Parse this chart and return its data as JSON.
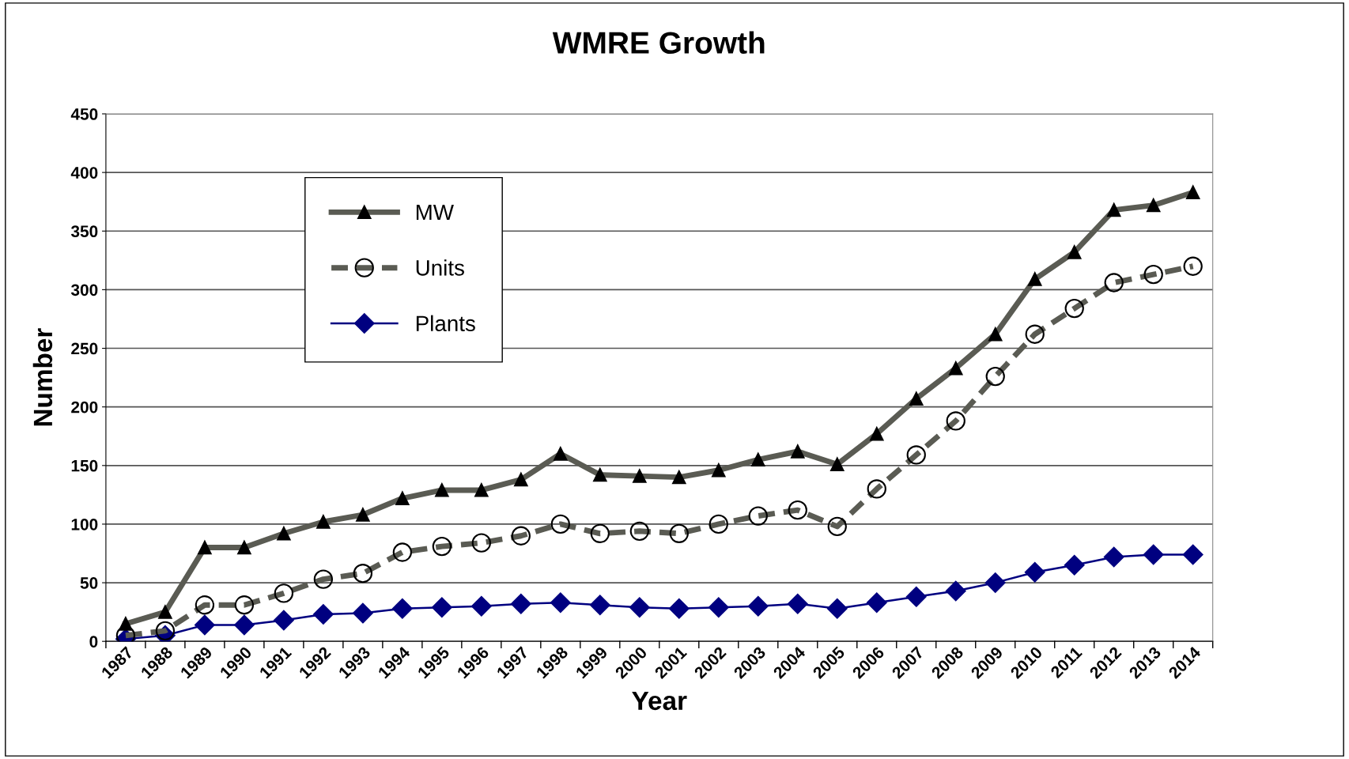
{
  "chart_data": {
    "type": "line",
    "title": "WMRE Growth",
    "xlabel": "Year",
    "ylabel": "Number",
    "categories": [
      "1987",
      "1988",
      "1989",
      "1990",
      "1991",
      "1992",
      "1993",
      "1994",
      "1995",
      "1996",
      "1997",
      "1998",
      "1999",
      "2000",
      "2001",
      "2002",
      "2003",
      "2004",
      "2005",
      "2006",
      "2007",
      "2008",
      "2009",
      "2010",
      "2011",
      "2012",
      "2013",
      "2014"
    ],
    "series": [
      {
        "name": "MW",
        "color": "#5a5b53",
        "marker": "triangle",
        "line_style": "solid",
        "values": [
          15,
          25,
          80,
          80,
          92,
          102,
          108,
          122,
          129,
          129,
          138,
          160,
          142,
          141,
          140,
          146,
          155,
          162,
          151,
          177,
          207,
          233,
          262,
          309,
          332,
          368,
          372,
          383
        ]
      },
      {
        "name": "Units",
        "color": "#5a5b53",
        "marker": "circle",
        "line_style": "dashed",
        "values": [
          5,
          9,
          31,
          31,
          41,
          53,
          58,
          76,
          81,
          84,
          90,
          100,
          92,
          94,
          92,
          100,
          107,
          112,
          98,
          130,
          159,
          188,
          226,
          262,
          284,
          306,
          313,
          320
        ]
      },
      {
        "name": "Plants",
        "color": "#000080",
        "marker": "diamond",
        "line_style": "solid",
        "values": [
          2,
          5,
          14,
          14,
          18,
          23,
          24,
          28,
          29,
          30,
          32,
          33,
          31,
          29,
          28,
          29,
          30,
          32,
          28,
          33,
          38,
          43,
          50,
          59,
          65,
          72,
          74,
          74
        ]
      }
    ],
    "ylim": [
      0,
      450
    ],
    "yticks": [
      0,
      50,
      100,
      150,
      200,
      250,
      300,
      350,
      400,
      450
    ],
    "grid": "y",
    "legend": "top left"
  }
}
